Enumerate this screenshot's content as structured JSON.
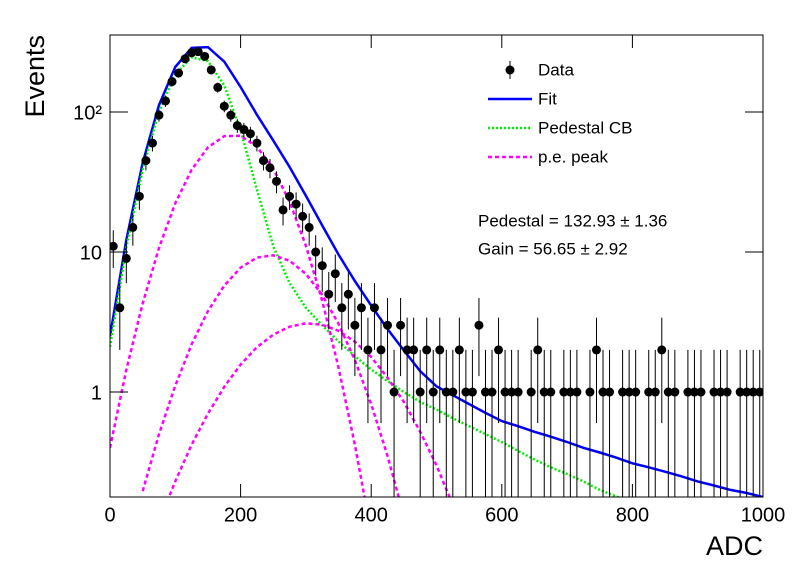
{
  "chart_data": {
    "type": "line",
    "log_y": true,
    "legend": "upper right",
    "xlim": [
      0,
      1000
    ],
    "xticks": [
      0,
      200,
      400,
      600,
      800,
      1000
    ],
    "ylim": [
      0.178,
      355
    ],
    "yticks": [
      1,
      10,
      {
        "value": 100,
        "label": "10²"
      }
    ],
    "x_label": "ADC",
    "y_label": "Events",
    "annotations": [
      "Pedestal = 132.93 ± 1.36",
      "Gain = 56.65 ± 2.92"
    ],
    "x": [
      0,
      25,
      50,
      75,
      100,
      125,
      150,
      175,
      200,
      225,
      250,
      275,
      300,
      325,
      350,
      375,
      400,
      425,
      450,
      475,
      500,
      525,
      550,
      575,
      600,
      625,
      650,
      675,
      700,
      725,
      750,
      775,
      800,
      825,
      850,
      875,
      900,
      925,
      950,
      975,
      1000
    ],
    "series": [
      {
        "name": "Data",
        "kind": "points",
        "color": "#000000",
        "x": [
          5,
          15,
          25,
          35,
          45,
          55,
          65,
          75,
          85,
          95,
          105,
          115,
          125,
          135,
          145,
          155,
          165,
          175,
          185,
          195,
          205,
          215,
          225,
          235,
          245,
          255,
          265,
          275,
          285,
          295,
          305,
          315,
          325,
          335,
          345,
          355,
          365,
          375,
          385,
          395,
          405,
          415,
          425,
          435,
          445,
          455,
          465,
          475,
          485,
          495,
          505,
          515,
          525,
          535,
          545,
          555,
          565,
          575,
          585,
          595,
          605,
          615,
          625,
          635,
          645,
          655,
          665,
          675,
          685,
          695,
          705,
          715,
          725,
          735,
          745,
          755,
          765,
          775,
          785,
          795,
          805,
          815,
          825,
          835,
          845,
          855,
          865,
          875,
          885,
          895,
          905,
          915,
          925,
          935,
          945,
          955,
          965,
          975,
          985,
          995
        ],
        "values": [
          11,
          4,
          9,
          15,
          25,
          45,
          60,
          95,
          120,
          165,
          190,
          240,
          265,
          270,
          250,
          200,
          150,
          110,
          95,
          80,
          75,
          70,
          60,
          45,
          40,
          32,
          20,
          25,
          22,
          18,
          15,
          10,
          8,
          5,
          7,
          4,
          5,
          3,
          4,
          2,
          4,
          2,
          3,
          1,
          3,
          2,
          2,
          1,
          2,
          1,
          2,
          1,
          1,
          2,
          1,
          1,
          3,
          1,
          1,
          2,
          1,
          1,
          1,
          null,
          1,
          2,
          1,
          1,
          null,
          1,
          1,
          1,
          null,
          1,
          2,
          1,
          1,
          null,
          1,
          1,
          1,
          null,
          1,
          1,
          2,
          1,
          1,
          null,
          1,
          1,
          1,
          null,
          1,
          1,
          1,
          null,
          1,
          1,
          1,
          1
        ],
        "errors": [
          3.3,
          2,
          3,
          3.9,
          5,
          6.7,
          7.7,
          9.7,
          11,
          12.8,
          13.8,
          15.5,
          16.3,
          16.4,
          15.8,
          14.1,
          12.2,
          10.5,
          9.7,
          8.9,
          8.7,
          8.4,
          7.7,
          6.7,
          6.3,
          5.7,
          4.5,
          5,
          4.7,
          4.2,
          3.9,
          3.2,
          2.8,
          2.2,
          2.6,
          2,
          2.2,
          1.7,
          2,
          1.4,
          2,
          1.4,
          1.7,
          1,
          1.7,
          1.4,
          1.4,
          1,
          1.4,
          1,
          1.4,
          1,
          1,
          1.4,
          1,
          1,
          1.7,
          1,
          1,
          1.4,
          1,
          1,
          1,
          null,
          1,
          1.4,
          1,
          1,
          null,
          1,
          1,
          1,
          null,
          1,
          1.4,
          1,
          1,
          null,
          1,
          1,
          1,
          null,
          1,
          1,
          1.4,
          1,
          1,
          null,
          1,
          1,
          1,
          null,
          1,
          1,
          1,
          null,
          1,
          1,
          1,
          1
        ]
      },
      {
        "name": "Fit",
        "kind": "line",
        "style": "solid",
        "color": "#0000ff",
        "values": [
          2.5,
          12.2,
          43.4,
          112,
          210,
          287,
          291,
          229,
          151,
          95.7,
          62.5,
          40.5,
          25.2,
          15.5,
          9.6,
          6.2,
          4.15,
          2.82,
          1.98,
          1.41,
          1.1,
          0.95,
          0.82,
          0.71,
          0.62,
          0.57,
          0.52,
          0.48,
          0.44,
          0.4,
          0.37,
          0.34,
          0.31,
          0.29,
          0.27,
          0.25,
          0.23,
          0.215,
          0.2,
          0.19,
          0.178
        ]
      },
      {
        "name": "Pedestal CB",
        "kind": "line",
        "style": "dotted",
        "color": "#00ee00",
        "values": [
          2.1,
          10.7,
          38.8,
          101,
          186,
          246,
          231,
          155,
          74,
          28,
          11,
          6,
          4,
          3,
          2.3,
          1.8,
          1.45,
          1.2,
          1.0,
          0.85,
          0.75,
          0.65,
          0.57,
          0.5,
          0.44,
          0.38,
          0.33,
          0.29,
          0.26,
          0.23,
          0.2,
          0.18,
          0.16,
          null,
          null,
          null,
          null,
          null,
          null,
          null,
          null
        ]
      },
      {
        "name": "p.e. peak",
        "kind": "lines",
        "style": "dashed",
        "color": "#ff00ff",
        "values": [
          [
            0.4,
            1.44,
            4.3,
            10.7,
            22.3,
            38.7,
            55.9,
            67.3,
            67.6,
            56.5,
            39.4,
            22.9,
            11.1,
            4.5,
            1.5,
            0.42,
            0.099,
            null,
            null,
            null,
            null,
            null,
            null,
            null,
            null,
            null,
            null,
            null,
            null,
            null,
            null,
            null,
            null,
            null,
            null,
            null,
            null,
            null,
            null,
            null,
            null
          ],
          [
            null,
            null,
            0.196,
            0.5,
            1.11,
            2.19,
            3.78,
            5.76,
            7.73,
            9.12,
            9.48,
            8.67,
            6.98,
            4.95,
            3.08,
            1.69,
            0.82,
            0.35,
            0.13,
            null,
            null,
            null,
            null,
            null,
            null,
            null,
            null,
            null,
            null,
            null,
            null,
            null,
            null,
            null,
            null,
            null,
            null,
            null,
            null,
            null,
            null
          ],
          [
            null,
            null,
            0.056,
            0.118,
            0.23,
            0.42,
            0.7,
            1.09,
            1.57,
            2.09,
            2.57,
            2.93,
            3.1,
            3.02,
            2.74,
            2.29,
            1.78,
            1.27,
            0.85,
            0.52,
            0.3,
            0.156,
            0.076,
            null,
            null,
            null,
            null,
            null,
            null,
            null,
            null,
            null,
            null,
            null,
            null,
            null,
            null,
            null,
            null,
            null,
            null
          ]
        ]
      }
    ]
  }
}
